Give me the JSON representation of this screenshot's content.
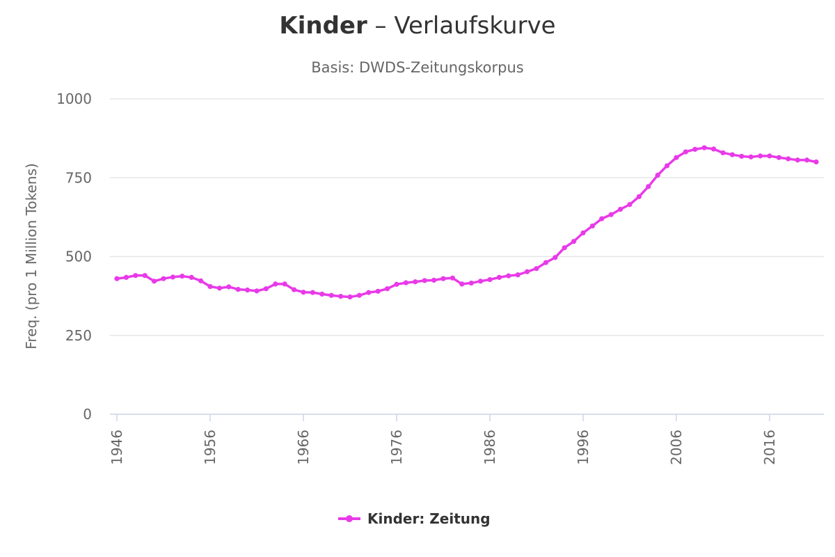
{
  "chart_data": {
    "type": "line",
    "title_keyword": "Kinder",
    "title_rest": " – Verlaufskurve",
    "subtitle": "Basis: DWDS-Zeitungskorpus",
    "ylabel": "Freq. (pro 1 Million Tokens)",
    "xlabel": "",
    "ylim": [
      0,
      1000
    ],
    "xlim": [
      1946,
      2021
    ],
    "y_ticks": [
      0,
      250,
      500,
      750,
      1000
    ],
    "x_ticks": [
      1946,
      1956,
      1966,
      1976,
      1986,
      1996,
      2006,
      2016
    ],
    "grid": true,
    "legend_position": "bottom-center",
    "series": [
      {
        "name": "Kinder: Zeitung",
        "color": "#e83ae8",
        "x": [
          1946,
          1947,
          1948,
          1949,
          1950,
          1951,
          1952,
          1953,
          1954,
          1955,
          1956,
          1957,
          1958,
          1959,
          1960,
          1961,
          1962,
          1963,
          1964,
          1965,
          1966,
          1967,
          1968,
          1969,
          1970,
          1971,
          1972,
          1973,
          1974,
          1975,
          1976,
          1977,
          1978,
          1979,
          1980,
          1981,
          1982,
          1983,
          1984,
          1985,
          1986,
          1987,
          1988,
          1989,
          1990,
          1991,
          1992,
          1993,
          1994,
          1995,
          1996,
          1997,
          1998,
          1999,
          2000,
          2001,
          2002,
          2003,
          2004,
          2005,
          2006,
          2007,
          2008,
          2009,
          2010,
          2011,
          2012,
          2013,
          2014,
          2015,
          2016,
          2017,
          2018,
          2019,
          2020,
          2021
        ],
        "values": [
          430,
          434,
          440,
          440,
          422,
          430,
          435,
          438,
          434,
          423,
          405,
          400,
          404,
          396,
          394,
          391,
          398,
          413,
          413,
          395,
          387,
          386,
          381,
          377,
          374,
          372,
          377,
          386,
          390,
          398,
          412,
          417,
          420,
          424,
          425,
          430,
          432,
          413,
          416,
          422,
          427,
          434,
          439,
          442,
          452,
          462,
          481,
          497,
          528,
          548,
          575,
          597,
          620,
          633,
          650,
          665,
          690,
          722,
          758,
          788,
          814,
          832,
          840,
          845,
          841,
          829,
          823,
          818,
          816,
          819,
          819,
          814,
          810,
          806,
          806,
          800
        ]
      }
    ]
  }
}
